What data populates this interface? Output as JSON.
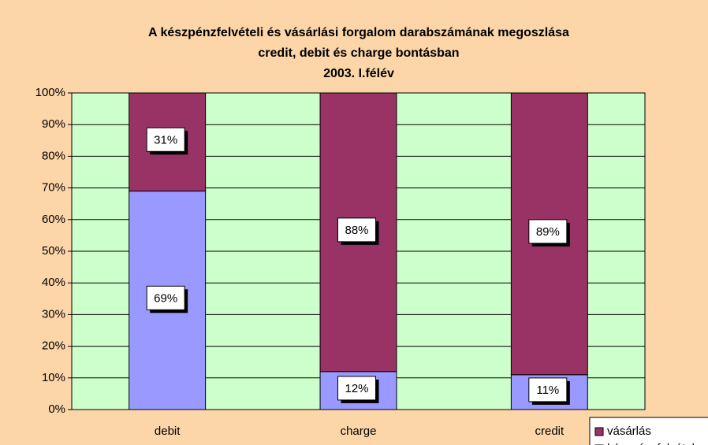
{
  "chart_data": {
    "type": "stacked_bar",
    "title": [
      "A készpénzfelvételi és vásárlási forgalom darabszámának megoszlása",
      "credit, debit és charge bontásban",
      "2003. I.félév"
    ],
    "categories": [
      "debit",
      "charge",
      "credit"
    ],
    "series": [
      {
        "name": "készpénzfelvétel",
        "color": "#9999ff",
        "values": [
          69,
          12,
          11
        ],
        "value_labels": [
          "69%",
          "12%",
          "11%"
        ]
      },
      {
        "name": "vásárlás",
        "color": "#993366",
        "values": [
          31,
          88,
          89
        ],
        "value_labels": [
          "31%",
          "88%",
          "89%"
        ]
      }
    ],
    "ylim": [
      0,
      100
    ],
    "yticks": [
      {
        "value": 0,
        "label": "0%"
      },
      {
        "value": 10,
        "label": "10%"
      },
      {
        "value": 20,
        "label": "20%"
      },
      {
        "value": 30,
        "label": "30%"
      },
      {
        "value": 40,
        "label": "40%"
      },
      {
        "value": 50,
        "label": "50%"
      },
      {
        "value": 60,
        "label": "60%"
      },
      {
        "value": 70,
        "label": "70%"
      },
      {
        "value": 80,
        "label": "80%"
      },
      {
        "value": 90,
        "label": "90%"
      },
      {
        "value": 100,
        "label": "100%"
      }
    ],
    "grid": true,
    "legend": "bottom-right"
  }
}
